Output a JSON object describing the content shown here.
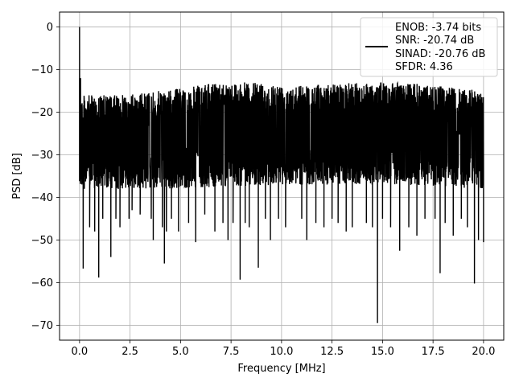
{
  "chart_data": {
    "type": "line",
    "title": "",
    "xlabel": "Frequency [MHz]",
    "ylabel": "PSD [dB]",
    "xlim": [
      -0.99,
      21.0
    ],
    "ylim": [
      -73.5,
      3.5
    ],
    "x_ticks": [
      0.0,
      2.5,
      5.0,
      7.5,
      10.0,
      12.5,
      15.0,
      17.5,
      20.0
    ],
    "x_tick_labels": [
      "0.0",
      "2.5",
      "5.0",
      "7.5",
      "10.0",
      "12.5",
      "15.0",
      "17.5",
      "20.0"
    ],
    "y_ticks": [
      0,
      -10,
      -20,
      -30,
      -40,
      -50,
      -60,
      -70
    ],
    "y_tick_labels": [
      "0",
      "−10",
      "−20",
      "−30",
      "−40",
      "−50",
      "−60",
      "−70"
    ],
    "grid": true,
    "legend_position": "top-right",
    "series": [
      {
        "name": "",
        "color": "#000000",
        "x_range": [
          0.0,
          20.0
        ],
        "band_top_envelope": [
          [
            0.0,
            -16
          ],
          [
            2.0,
            -16
          ],
          [
            4.0,
            -15
          ],
          [
            5.5,
            -14
          ],
          [
            7.0,
            -13
          ],
          [
            8.5,
            -13
          ],
          [
            10.0,
            -13.5
          ],
          [
            12.0,
            -13.5
          ],
          [
            14.0,
            -13
          ],
          [
            16.0,
            -13
          ],
          [
            18.0,
            -14
          ],
          [
            20.0,
            -15
          ]
        ],
        "band_bottom_envelope": [
          [
            0.0,
            -38
          ],
          [
            4.0,
            -38
          ],
          [
            10.0,
            -37
          ],
          [
            16.0,
            -37
          ],
          [
            20.0,
            -38
          ]
        ],
        "peaks": [
          [
            0.0,
            0.0
          ],
          [
            0.05,
            -12
          ],
          [
            0.08,
            -20
          ],
          [
            0.12,
            -26
          ]
        ],
        "dips": [
          [
            0.18,
            -56.7
          ],
          [
            0.5,
            -47
          ],
          [
            0.75,
            -48
          ],
          [
            0.95,
            -58.8
          ],
          [
            1.15,
            -45
          ],
          [
            1.55,
            -54
          ],
          [
            1.8,
            -45
          ],
          [
            2.0,
            -47
          ],
          [
            2.45,
            -45
          ],
          [
            2.6,
            -43
          ],
          [
            3.0,
            -44
          ],
          [
            3.55,
            -45
          ],
          [
            3.65,
            -50
          ],
          [
            4.1,
            -47
          ],
          [
            4.2,
            -55.5
          ],
          [
            4.3,
            -48
          ],
          [
            4.55,
            -45
          ],
          [
            4.9,
            -48
          ],
          [
            5.4,
            -46
          ],
          [
            5.75,
            -50.5
          ],
          [
            6.2,
            -44
          ],
          [
            6.7,
            -48
          ],
          [
            7.1,
            -46
          ],
          [
            7.35,
            -50
          ],
          [
            7.6,
            -46
          ],
          [
            7.95,
            -59.3
          ],
          [
            8.2,
            -46
          ],
          [
            8.4,
            -47
          ],
          [
            8.85,
            -56.5
          ],
          [
            9.2,
            -45
          ],
          [
            9.45,
            -50
          ],
          [
            9.85,
            -45
          ],
          [
            10.2,
            -47
          ],
          [
            11.0,
            -45
          ],
          [
            11.25,
            -50
          ],
          [
            11.7,
            -46
          ],
          [
            12.1,
            -47
          ],
          [
            12.5,
            -45
          ],
          [
            12.8,
            -46
          ],
          [
            13.2,
            -48
          ],
          [
            13.5,
            -47
          ],
          [
            14.2,
            -46
          ],
          [
            14.5,
            -47
          ],
          [
            14.75,
            -69.5
          ],
          [
            15.0,
            -45
          ],
          [
            15.4,
            -47
          ],
          [
            15.85,
            -52.5
          ],
          [
            16.3,
            -47
          ],
          [
            16.7,
            -49
          ],
          [
            17.1,
            -45
          ],
          [
            17.6,
            -45
          ],
          [
            17.85,
            -57.8
          ],
          [
            18.1,
            -46
          ],
          [
            18.5,
            -49
          ],
          [
            18.9,
            -45
          ],
          [
            19.2,
            -47
          ],
          [
            19.55,
            -60.2
          ],
          [
            19.75,
            -50
          ],
          [
            20.0,
            -50.5
          ]
        ]
      }
    ],
    "legend_entries": [
      "ENOB: -3.74 bits",
      "SNR: -20.74 dB",
      "SINAD: -20.76 dB",
      "SFDR: 4.36"
    ]
  }
}
